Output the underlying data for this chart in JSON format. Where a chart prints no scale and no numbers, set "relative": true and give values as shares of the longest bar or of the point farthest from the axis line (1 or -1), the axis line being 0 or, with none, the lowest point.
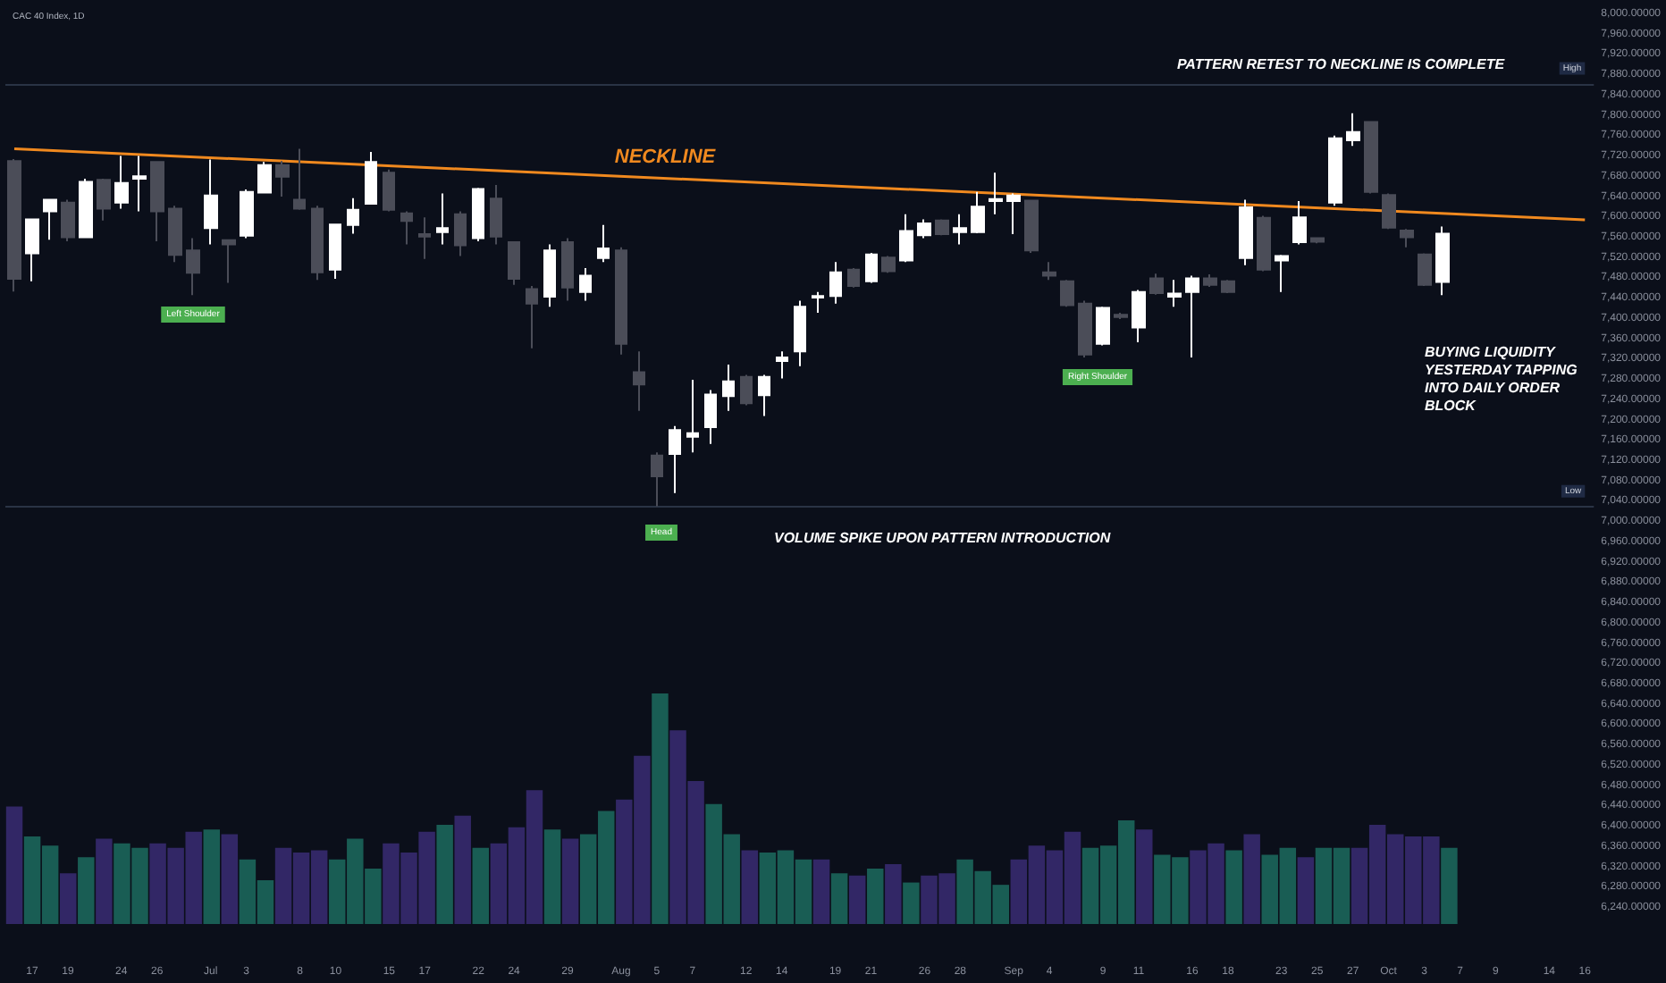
{
  "chart_data": [
    {
      "type": "candlestick",
      "title": "CAC 40 Index, 1D",
      "categories": [
        null,
        "17",
        null,
        "19",
        null,
        null,
        "24",
        null,
        "26",
        null,
        null,
        "Jul",
        null,
        "3",
        null,
        null,
        "8",
        null,
        "10",
        null,
        null,
        "15",
        null,
        "17",
        null,
        null,
        "22",
        null,
        "24",
        null,
        null,
        "29",
        null,
        null,
        "Aug",
        null,
        "5",
        null,
        "7",
        null,
        null,
        "12",
        null,
        "14",
        null,
        null,
        "19",
        null,
        "21",
        null,
        null,
        "26",
        null,
        "28",
        null,
        null,
        "Sep",
        null,
        "4",
        null,
        null,
        "9",
        null,
        "11",
        null,
        null,
        "16",
        null,
        "18",
        null,
        null,
        "23",
        null,
        "25",
        null,
        "27",
        null,
        "Oct",
        null,
        "3",
        null,
        "7",
        null,
        "9",
        null,
        null,
        "14",
        null,
        "16"
      ],
      "ohlc": [
        [
          7711,
          7715,
          7454,
          7479
        ],
        [
          7529,
          7596,
          7474,
          7596
        ],
        [
          7612,
          7635,
          7556,
          7635
        ],
        [
          7629,
          7635,
          7553,
          7561
        ],
        [
          7561,
          7676,
          7561,
          7670
        ],
        [
          7674,
          7676,
          7594,
          7617
        ],
        [
          7629,
          7721,
          7617,
          7668
        ],
        [
          7676,
          7721,
          7612,
          7681
        ],
        [
          7709,
          7709,
          7553,
          7612
        ],
        [
          7617,
          7623,
          7512,
          7526
        ],
        [
          7535,
          7559,
          7447,
          7491
        ],
        [
          7579,
          7714,
          7547,
          7643
        ],
        [
          7555,
          7555,
          7471,
          7547
        ],
        [
          7564,
          7655,
          7559,
          7650
        ],
        [
          7649,
          7709,
          7649,
          7703
        ],
        [
          7703,
          7711,
          7641,
          7680
        ],
        [
          7635,
          7735,
          7615,
          7617
        ],
        [
          7617,
          7623,
          7477,
          7492
        ],
        [
          7497,
          7586,
          7479,
          7586
        ],
        [
          7585,
          7638,
          7568,
          7615
        ],
        [
          7627,
          7729,
          7627,
          7709
        ],
        [
          7688,
          7694,
          7612,
          7615
        ],
        [
          7608,
          7612,
          7547,
          7593
        ],
        [
          7567,
          7600,
          7518,
          7562
        ],
        [
          7571,
          7647,
          7547,
          7579
        ],
        [
          7606,
          7612,
          7524,
          7545
        ],
        [
          7559,
          7658,
          7553,
          7656
        ],
        [
          7637,
          7664,
          7547,
          7562
        ],
        [
          7551,
          7553,
          7467,
          7479
        ],
        [
          7459,
          7465,
          7342,
          7430
        ],
        [
          7444,
          7547,
          7424,
          7535
        ],
        [
          7551,
          7559,
          7436,
          7462
        ],
        [
          7453,
          7500,
          7436,
          7485
        ],
        [
          7520,
          7585,
          7512,
          7539
        ],
        [
          7535,
          7541,
          7330,
          7351
        ],
        [
          7295,
          7336,
          7219,
          7271
        ],
        [
          7131,
          7137,
          7031,
          7090
        ],
        [
          7134,
          7189,
          7057,
          7181
        ],
        [
          7168,
          7280,
          7137,
          7175
        ],
        [
          7187,
          7260,
          7154,
          7251
        ],
        [
          7248,
          7310,
          7219,
          7277
        ],
        [
          7286,
          7290,
          7230,
          7234
        ],
        [
          7250,
          7290,
          7209,
          7286
        ],
        [
          7317,
          7336,
          7283,
          7324
        ],
        [
          7336,
          7436,
          7307,
          7424
        ],
        [
          7442,
          7453,
          7412,
          7445
        ],
        [
          7445,
          7512,
          7430,
          7492
        ],
        [
          7497,
          7500,
          7462,
          7465
        ],
        [
          7474,
          7530,
          7471,
          7527
        ],
        [
          7521,
          7524,
          7491,
          7494
        ],
        [
          7515,
          7606,
          7512,
          7573
        ],
        [
          7565,
          7596,
          7559,
          7588
        ],
        [
          7594,
          7596,
          7565,
          7567
        ],
        [
          7571,
          7606,
          7547,
          7579
        ],
        [
          7571,
          7650,
          7569,
          7621
        ],
        [
          7632,
          7688,
          7606,
          7636
        ],
        [
          7632,
          7647,
          7567,
          7643
        ],
        [
          7633,
          7635,
          7530,
          7535
        ],
        [
          7492,
          7512,
          7477,
          7485
        ],
        [
          7474,
          7477,
          7424,
          7427
        ],
        [
          7430,
          7436,
          7324,
          7330
        ],
        [
          7351,
          7424,
          7348,
          7422
        ],
        [
          7408,
          7412,
          7400,
          7404
        ],
        [
          7383,
          7457,
          7354,
          7453
        ],
        [
          7480,
          7489,
          7448,
          7451
        ],
        [
          7444,
          7477,
          7424,
          7450
        ],
        [
          7453,
          7485,
          7324,
          7480
        ],
        [
          7480,
          7488,
          7463,
          7467
        ],
        [
          7474,
          7477,
          7451,
          7453
        ],
        [
          7520,
          7635,
          7506,
          7620
        ],
        [
          7599,
          7603,
          7494,
          7497
        ],
        [
          7515,
          7526,
          7453,
          7524
        ],
        [
          7551,
          7632,
          7547,
          7600
        ],
        [
          7559,
          7561,
          7549,
          7552
        ],
        [
          7629,
          7761,
          7623,
          7756
        ],
        [
          7752,
          7805,
          7741,
          7768
        ],
        [
          7788,
          7788,
          7647,
          7650
        ],
        [
          7644,
          7647,
          7577,
          7580
        ],
        [
          7574,
          7577,
          7541,
          7561
        ],
        [
          7527,
          7529,
          7465,
          7467
        ],
        [
          7473,
          7582,
          7447,
          7568
        ],
        null,
        null,
        null,
        null,
        null,
        null,
        null,
        null
      ],
      "colors": [
        "#4b4d58",
        "#ffffff",
        "#ffffff",
        "#4b4d58",
        "#ffffff",
        "#4b4d58",
        "#ffffff",
        "#ffffff",
        "#4b4d58",
        "#4b4d58",
        "#4b4d58",
        "#ffffff",
        "#4b4d58",
        "#ffffff",
        "#ffffff",
        "#4b4d58",
        "#4b4d58",
        "#4b4d58",
        "#ffffff",
        "#ffffff",
        "#ffffff",
        "#4b4d58",
        "#4b4d58",
        "#4b4d58",
        "#ffffff",
        "#4b4d58",
        "#ffffff",
        "#4b4d58",
        "#4b4d58",
        "#4b4d58",
        "#ffffff",
        "#4b4d58",
        "#ffffff",
        "#ffffff",
        "#4b4d58",
        "#4b4d58",
        "#4b4d58",
        "#ffffff",
        "#ffffff",
        "#ffffff",
        "#ffffff",
        "#4b4d58",
        "#ffffff",
        "#ffffff",
        "#ffffff",
        "#ffffff",
        "#ffffff",
        "#4b4d58",
        "#ffffff",
        "#4b4d58",
        "#ffffff",
        "#ffffff",
        "#4b4d58",
        "#ffffff",
        "#ffffff",
        "#ffffff",
        "#ffffff",
        "#4b4d58",
        "#4b4d58",
        "#4b4d58",
        "#4b4d58",
        "#ffffff",
        "#4b4d58",
        "#ffffff",
        "#4b4d58",
        "#ffffff",
        "#ffffff",
        "#4b4d58",
        "#4b4d58",
        "#ffffff",
        "#4b4d58",
        "#ffffff",
        "#ffffff",
        "#4b4d58",
        "#ffffff",
        "#ffffff",
        "#4b4d58",
        "#4b4d58",
        "#4b4d58",
        "#4b4d58",
        "#ffffff",
        null,
        null,
        null,
        null,
        null,
        null,
        null,
        null
      ],
      "series": [
        {
          "type": "line",
          "color": "#f0891f",
          "values": [
            7735,
            null,
            null,
            null,
            null,
            null,
            null,
            null,
            null,
            null,
            null,
            null,
            null,
            null,
            null,
            null,
            null,
            null,
            null,
            null,
            null,
            null,
            null,
            null,
            null,
            null,
            null,
            null,
            null,
            null,
            null,
            null,
            null,
            null,
            null,
            null,
            null,
            null,
            null,
            null,
            null,
            null,
            null,
            null,
            null,
            null,
            null,
            null,
            null,
            null,
            null,
            null,
            null,
            null,
            null,
            null,
            null,
            null,
            null,
            null,
            null,
            null,
            null,
            null,
            null,
            null,
            null,
            null,
            null,
            null,
            null,
            null,
            null,
            null,
            null,
            null,
            null,
            null,
            null,
            null,
            null,
            null,
            null,
            null,
            null,
            null,
            null,
            null,
            7595
          ]
        }
      ],
      "ylim": [
        6240,
        8000
      ],
      "yticks": [
        {
          "value": 6240,
          "label": "6,240.00000"
        },
        {
          "value": 6280,
          "label": "6,280.00000"
        },
        {
          "value": 6320,
          "label": "6,320.00000"
        },
        {
          "value": 6360,
          "label": "6,360.00000"
        },
        {
          "value": 6400,
          "label": "6,400.00000"
        },
        {
          "value": 6440,
          "label": "6,440.00000"
        },
        {
          "value": 6480,
          "label": "6,480.00000"
        },
        {
          "value": 6520,
          "label": "6,520.00000"
        },
        {
          "value": 6560,
          "label": "6,560.00000"
        },
        {
          "value": 6600,
          "label": "6,600.00000"
        },
        {
          "value": 6640,
          "label": "6,640.00000"
        },
        {
          "value": 6680,
          "label": "6,680.00000"
        },
        {
          "value": 6720,
          "label": "6,720.00000"
        },
        {
          "value": 6760,
          "label": "6,760.00000"
        },
        {
          "value": 6800,
          "label": "6,800.00000"
        },
        {
          "value": 6840,
          "label": "6,840.00000"
        },
        {
          "value": 6880,
          "label": "6,880.00000"
        },
        {
          "value": 6920,
          "label": "6,920.00000"
        },
        {
          "value": 6960,
          "label": "6,960.00000"
        },
        {
          "value": 7000,
          "label": "7,000.00000"
        },
        {
          "value": 7040,
          "label": "7,040.00000"
        },
        {
          "value": 7080,
          "label": "7,080.00000"
        },
        {
          "value": 7120,
          "label": "7,120.00000"
        },
        {
          "value": 7160,
          "label": "7,160.00000"
        },
        {
          "value": 7200,
          "label": "7,200.00000"
        },
        {
          "value": 7240,
          "label": "7,240.00000"
        },
        {
          "value": 7280,
          "label": "7,280.00000"
        },
        {
          "value": 7320,
          "label": "7,320.00000"
        },
        {
          "value": 7360,
          "label": "7,360.00000"
        },
        {
          "value": 7400,
          "label": "7,400.00000"
        },
        {
          "value": 7440,
          "label": "7,440.00000"
        },
        {
          "value": 7480,
          "label": "7,480.00000"
        },
        {
          "value": 7520,
          "label": "7,520.00000"
        },
        {
          "value": 7560,
          "label": "7,560.00000"
        },
        {
          "value": 7600,
          "label": "7,600.00000"
        },
        {
          "value": 7640,
          "label": "7,640.00000"
        },
        {
          "value": 7680,
          "label": "7,680.00000"
        },
        {
          "value": 7720,
          "label": "7,720.00000"
        },
        {
          "value": 7760,
          "label": "7,760.00000"
        },
        {
          "value": 7800,
          "label": "7,800.00000"
        },
        {
          "value": 7840,
          "label": "7,840.00000"
        },
        {
          "value": 7880,
          "label": "7,880.00000"
        },
        {
          "value": 7920,
          "label": "7,920.00000"
        },
        {
          "value": 7960,
          "label": "7,960.00000"
        },
        {
          "value": 8000,
          "label": "8,000.00000"
        }
      ],
      "ref_lines": [
        {
          "axis": "y",
          "value": 7863.51,
          "label": "High",
          "color": "#2a3345"
        },
        {
          "axis": "y",
          "value": 7030.78,
          "label": "Low",
          "color": "#2a3345"
        }
      ],
      "annotations": [
        "NECKLINE",
        "PATTERN RETEST TO NECKLINE IS COMPLETE",
        "BUYING LIQUIDITY YESTERDAY TAPPING INTO DAILY ORDER BLOCK",
        "VOLUME SPIKE UPON PATTERN INTRODUCTION",
        "Left Shoulder",
        "Head",
        "Right Shoulder"
      ]
    },
    {
      "type": "bar",
      "relative": true,
      "categories": [
        null,
        null,
        null,
        null,
        null,
        null,
        null,
        null,
        null,
        null,
        null,
        null,
        null,
        null,
        null,
        null,
        null,
        null,
        null,
        null,
        null,
        null,
        null,
        null,
        null,
        null,
        null,
        null,
        null,
        null,
        null,
        null,
        null,
        null,
        null,
        null,
        null,
        null,
        null,
        null,
        null,
        null,
        null,
        null,
        null,
        null,
        null,
        null,
        null,
        null,
        null,
        null,
        null,
        null,
        null,
        null,
        null,
        null,
        null,
        null,
        null,
        null,
        null,
        null,
        null,
        null,
        null,
        null,
        null,
        null,
        null,
        null,
        null,
        null,
        null,
        null,
        null,
        null,
        null,
        null,
        null,
        null,
        null,
        null,
        null,
        null,
        null,
        null,
        null
      ],
      "values": [
        0.51,
        0.38,
        0.34,
        0.22,
        0.29,
        0.37,
        0.35,
        0.33,
        0.35,
        0.33,
        0.4,
        0.41,
        0.39,
        0.28,
        0.19,
        0.33,
        0.31,
        0.32,
        0.28,
        0.37,
        0.24,
        0.35,
        0.31,
        0.4,
        0.43,
        0.47,
        0.33,
        0.35,
        0.42,
        0.58,
        0.41,
        0.37,
        0.39,
        0.49,
        0.54,
        0.73,
        1,
        0.84,
        0.62,
        0.52,
        0.39,
        0.32,
        0.31,
        0.32,
        0.28,
        0.28,
        0.22,
        0.21,
        0.24,
        0.26,
        0.18,
        0.21,
        0.22,
        0.28,
        0.23,
        0.17,
        0.28,
        0.34,
        0.32,
        0.4,
        0.33,
        0.34,
        0.45,
        0.41,
        0.3,
        0.29,
        0.32,
        0.35,
        0.32,
        0.39,
        0.3,
        0.33,
        0.29,
        0.33,
        0.33,
        0.33,
        0.43,
        0.39,
        0.38,
        0.38,
        0.33,
        null,
        null,
        null,
        null,
        null,
        null,
        null,
        null
      ],
      "colors": [
        "#3a2c74",
        "#1c6b5f",
        "#1c6b5f",
        "#3a2c74",
        "#1c6b5f",
        "#3a2c74",
        "#1c6b5f",
        "#1c6b5f",
        "#3a2c74",
        "#3a2c74",
        "#3a2c74",
        "#1c6b5f",
        "#3a2c74",
        "#1c6b5f",
        "#1c6b5f",
        "#3a2c74",
        "#3a2c74",
        "#3a2c74",
        "#1c6b5f",
        "#1c6b5f",
        "#1c6b5f",
        "#3a2c74",
        "#3a2c74",
        "#3a2c74",
        "#1c6b5f",
        "#3a2c74",
        "#1c6b5f",
        "#3a2c74",
        "#3a2c74",
        "#3a2c74",
        "#1c6b5f",
        "#3a2c74",
        "#1c6b5f",
        "#1c6b5f",
        "#3a2c74",
        "#3a2c74",
        "#1c6b5f",
        "#3a2c74",
        "#3a2c74",
        "#1c6b5f",
        "#1c6b5f",
        "#3a2c74",
        "#1c6b5f",
        "#1c6b5f",
        "#1c6b5f",
        "#3a2c74",
        "#1c6b5f",
        "#3a2c74",
        "#1c6b5f",
        "#3a2c74",
        "#1c6b5f",
        "#3a2c74",
        "#3a2c74",
        "#1c6b5f",
        "#1c6b5f",
        "#1c6b5f",
        "#3a2c74",
        "#3a2c74",
        "#3a2c74",
        "#3a2c74",
        "#1c6b5f",
        "#1c6b5f",
        "#1c6b5f",
        "#3a2c74",
        "#1c6b5f",
        "#1c6b5f",
        "#3a2c74",
        "#3a2c74",
        "#1c6b5f",
        "#3a2c74",
        "#1c6b5f",
        "#1c6b5f",
        "#3a2c74",
        "#1c6b5f",
        "#1c6b5f",
        "#3a2c74",
        "#3a2c74",
        "#3a2c74",
        "#3a2c74",
        "#3a2c74",
        "#1c6b5f",
        null,
        null,
        null,
        null,
        null,
        null,
        null,
        null
      ]
    }
  ]
}
